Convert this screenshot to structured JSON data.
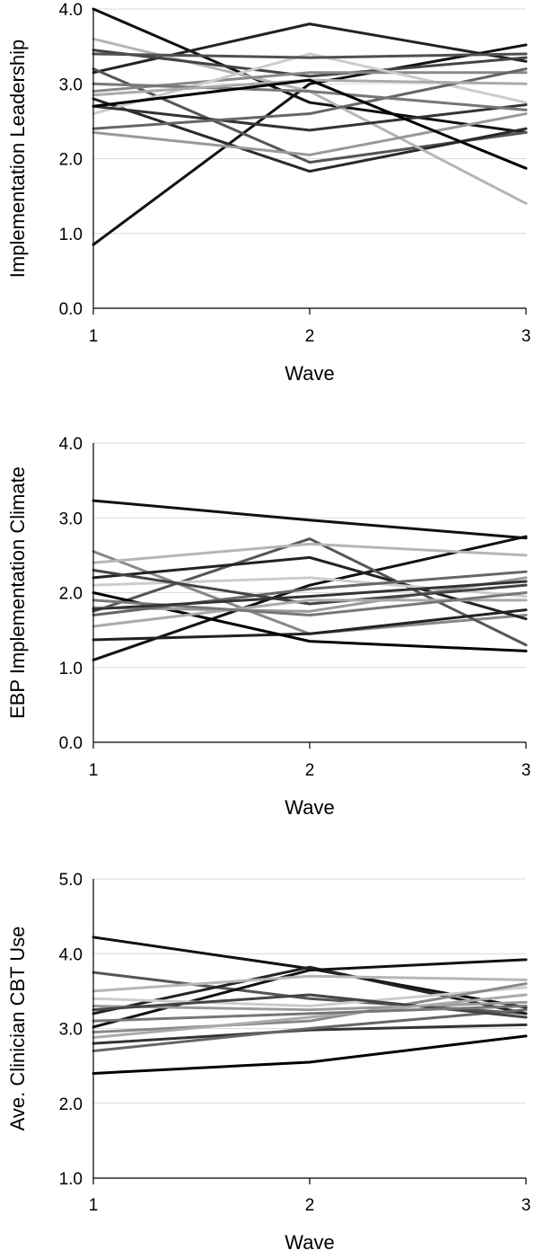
{
  "chart_data": [
    {
      "type": "line",
      "title": "",
      "xlabel": "Wave",
      "ylabel": "Implementation Leadership",
      "x": [
        1,
        2,
        3
      ],
      "x_ticks": [
        "1",
        "2",
        "3"
      ],
      "y_ticks": [
        "0.0",
        "1.0",
        "2.0",
        "3.0",
        "4.0"
      ],
      "ylim": [
        0,
        4
      ],
      "grid": true,
      "legend": "none",
      "series": [
        {
          "color": "#111111",
          "values": [
            4.0,
            2.75,
            2.35
          ]
        },
        {
          "color": "#222222",
          "values": [
            3.15,
            3.8,
            3.3
          ]
        },
        {
          "color": "#111111",
          "values": [
            0.85,
            3.0,
            3.52
          ]
        },
        {
          "color": "#555555",
          "values": [
            3.2,
            1.95,
            2.35
          ]
        },
        {
          "color": "#2a2a2a",
          "values": [
            2.8,
            1.83,
            2.4
          ]
        },
        {
          "color": "#b5b5b5",
          "values": [
            3.6,
            2.9,
            1.4
          ]
        },
        {
          "color": "#444444",
          "values": [
            3.45,
            3.1,
            3.35
          ]
        },
        {
          "color": "#888888",
          "values": [
            2.9,
            3.15,
            3.15
          ]
        },
        {
          "color": "#cccccc",
          "values": [
            2.6,
            3.4,
            2.75
          ]
        },
        {
          "color": "#333333",
          "values": [
            2.7,
            2.38,
            2.72
          ]
        },
        {
          "color": "#666666",
          "values": [
            2.4,
            2.6,
            3.2
          ]
        },
        {
          "color": "#999999",
          "values": [
            2.35,
            2.05,
            2.6
          ]
        },
        {
          "color": "#777777",
          "values": [
            3.0,
            2.9,
            2.65
          ]
        },
        {
          "color": "#aaaaaa",
          "values": [
            2.85,
            3.05,
            3.0
          ]
        },
        {
          "color": "#505050",
          "values": [
            3.4,
            3.35,
            3.4
          ]
        },
        {
          "color": "#000000",
          "values": [
            2.7,
            3.05,
            1.87
          ]
        }
      ]
    },
    {
      "type": "line",
      "title": "",
      "xlabel": "Wave",
      "ylabel": "EBP Implementation Climate",
      "x": [
        1,
        2,
        3
      ],
      "x_ticks": [
        "1",
        "2",
        "3"
      ],
      "y_ticks": [
        "0.0",
        "1.0",
        "2.0",
        "3.0",
        "4.0"
      ],
      "ylim": [
        0,
        4
      ],
      "grid": true,
      "legend": "none",
      "series": [
        {
          "color": "#111111",
          "values": [
            3.23,
            2.97,
            2.73
          ]
        },
        {
          "color": "#111111",
          "values": [
            1.1,
            2.1,
            2.75
          ]
        },
        {
          "color": "#888888",
          "values": [
            2.55,
            1.45,
            1.7
          ]
        },
        {
          "color": "#555555",
          "values": [
            1.75,
            2.72,
            1.3
          ]
        },
        {
          "color": "#222222",
          "values": [
            2.2,
            2.47,
            1.65
          ]
        },
        {
          "color": "#222222",
          "values": [
            1.37,
            1.45,
            1.77
          ]
        },
        {
          "color": "#000000",
          "values": [
            2.0,
            1.35,
            1.22
          ]
        },
        {
          "color": "#b5b5b5",
          "values": [
            2.4,
            2.65,
            2.5
          ]
        },
        {
          "color": "#cccccc",
          "values": [
            2.1,
            2.2,
            1.95
          ]
        },
        {
          "color": "#999999",
          "values": [
            1.8,
            1.75,
            2.2
          ]
        },
        {
          "color": "#666666",
          "values": [
            1.7,
            2.05,
            2.28
          ]
        },
        {
          "color": "#444444",
          "values": [
            2.3,
            1.85,
            2.1
          ]
        },
        {
          "color": "#aaaaaa",
          "values": [
            1.55,
            1.9,
            1.9
          ]
        },
        {
          "color": "#777777",
          "values": [
            1.9,
            1.7,
            2.0
          ]
        },
        {
          "color": "#333333",
          "values": [
            1.78,
            1.95,
            2.15
          ]
        }
      ]
    },
    {
      "type": "line",
      "title": "",
      "xlabel": "Wave",
      "ylabel": "Ave. Clinician CBT Use",
      "x": [
        1,
        2,
        3
      ],
      "x_ticks": [
        "1",
        "2",
        "3"
      ],
      "y_ticks": [
        "1.0",
        "2.0",
        "3.0",
        "4.0",
        "5.0"
      ],
      "ylim": [
        1,
        5
      ],
      "grid": true,
      "legend": "none",
      "series": [
        {
          "color": "#111111",
          "values": [
            4.22,
            3.8,
            3.28
          ]
        },
        {
          "color": "#555555",
          "values": [
            3.75,
            3.4,
            3.2
          ]
        },
        {
          "color": "#222222",
          "values": [
            3.2,
            3.82,
            3.2
          ]
        },
        {
          "color": "#111111",
          "values": [
            3.02,
            3.78,
            3.92
          ]
        },
        {
          "color": "#000000",
          "values": [
            2.4,
            2.55,
            2.9
          ]
        },
        {
          "color": "#333333",
          "values": [
            2.8,
            2.98,
            3.05
          ]
        },
        {
          "color": "#b5b5b5",
          "values": [
            3.5,
            3.7,
            3.65
          ]
        },
        {
          "color": "#cccccc",
          "values": [
            3.4,
            3.3,
            3.55
          ]
        },
        {
          "color": "#888888",
          "values": [
            2.95,
            3.1,
            3.6
          ]
        },
        {
          "color": "#666666",
          "values": [
            2.7,
            3.0,
            3.25
          ]
        },
        {
          "color": "#999999",
          "values": [
            3.3,
            3.25,
            3.35
          ]
        },
        {
          "color": "#444444",
          "values": [
            3.25,
            3.45,
            3.15
          ]
        },
        {
          "color": "#aaaaaa",
          "values": [
            2.88,
            3.15,
            3.45
          ]
        },
        {
          "color": "#777777",
          "values": [
            3.1,
            3.2,
            3.3
          ]
        }
      ]
    }
  ]
}
